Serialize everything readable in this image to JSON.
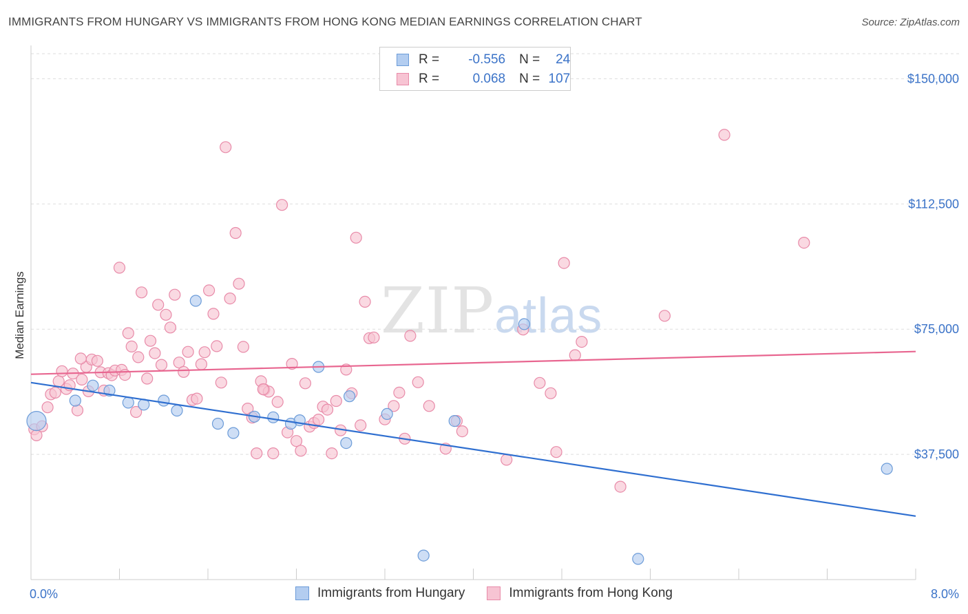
{
  "title": "IMMIGRANTS FROM HUNGARY VS IMMIGRANTS FROM HONG KONG MEDIAN EARNINGS CORRELATION CHART",
  "source": "Source: ZipAtlas.com",
  "watermark": {
    "zip": "ZIP",
    "atlas": "atlas"
  },
  "legend": {
    "r_label": "R =",
    "n_label": "N =",
    "rows": [
      {
        "r": "-0.556",
        "n": "24",
        "swatch_fill": "#b3cdf0",
        "swatch_border": "#6b9bd8"
      },
      {
        "r": "0.068",
        "n": "107",
        "swatch_fill": "#f7c4d3",
        "swatch_border": "#e88aa8"
      }
    ]
  },
  "bottom_legend": [
    {
      "label": "Immigrants from Hungary",
      "fill": "#b3cdf0",
      "border": "#6b9bd8"
    },
    {
      "label": "Immigrants from Hong Kong",
      "fill": "#f7c4d3",
      "border": "#e88aa8"
    }
  ],
  "chart_data": {
    "type": "scatter",
    "ylabel": "Median Earnings",
    "xlim": [
      0,
      8
    ],
    "ylim": [
      0,
      157500
    ],
    "x_tick_labels": [
      "0.0%",
      "8.0%"
    ],
    "y_ticks": [
      37500,
      75000,
      112500,
      150000
    ],
    "y_tick_labels": [
      "$37,500",
      "$75,000",
      "$112,500",
      "$150,000"
    ],
    "grid": true,
    "series": [
      {
        "name": "Immigrants from Hungary",
        "color": "#6b9bd8",
        "fill": "#b3cdf0",
        "trend": {
          "x": [
            0,
            8
          ],
          "y": [
            59000,
            19000
          ],
          "color": "#2f6fd0"
        },
        "points": [
          [
            0.05,
            47500
          ],
          [
            0.4,
            53600
          ],
          [
            0.56,
            58100
          ],
          [
            0.71,
            56600
          ],
          [
            0.88,
            53000
          ],
          [
            1.02,
            52400
          ],
          [
            1.2,
            53600
          ],
          [
            1.32,
            50600
          ],
          [
            1.49,
            83500
          ],
          [
            1.69,
            46700
          ],
          [
            1.83,
            43900
          ],
          [
            2.02,
            48800
          ],
          [
            2.19,
            48600
          ],
          [
            2.35,
            46700
          ],
          [
            2.43,
            47700
          ],
          [
            2.6,
            63700
          ],
          [
            2.85,
            40900
          ],
          [
            2.88,
            54900
          ],
          [
            3.22,
            49600
          ],
          [
            3.55,
            7200
          ],
          [
            3.83,
            47500
          ],
          [
            4.46,
            76500
          ],
          [
            7.74,
            33200
          ],
          [
            5.49,
            6200
          ]
        ]
      },
      {
        "name": "Immigrants from Hong Kong",
        "color": "#e88aa8",
        "fill": "#f7c4d3",
        "trend": {
          "x": [
            0,
            8
          ],
          "y": [
            61500,
            68300
          ],
          "color": "#e86690"
        },
        "points": [
          [
            0.03,
            45000
          ],
          [
            0.05,
            43200
          ],
          [
            0.1,
            45900
          ],
          [
            0.15,
            51600
          ],
          [
            0.18,
            55500
          ],
          [
            0.22,
            56000
          ],
          [
            0.25,
            59400
          ],
          [
            0.28,
            62400
          ],
          [
            0.32,
            57100
          ],
          [
            0.35,
            58200
          ],
          [
            0.38,
            61700
          ],
          [
            0.42,
            50700
          ],
          [
            0.46,
            59900
          ],
          [
            0.5,
            63700
          ],
          [
            0.52,
            56400
          ],
          [
            0.55,
            65900
          ],
          [
            0.6,
            65500
          ],
          [
            0.63,
            62100
          ],
          [
            0.66,
            56600
          ],
          [
            0.7,
            61800
          ],
          [
            0.73,
            61200
          ],
          [
            0.76,
            62600
          ],
          [
            0.8,
            93400
          ],
          [
            0.82,
            62800
          ],
          [
            0.85,
            61300
          ],
          [
            0.88,
            73800
          ],
          [
            0.91,
            69800
          ],
          [
            0.95,
            50200
          ],
          [
            0.97,
            66600
          ],
          [
            1.0,
            86000
          ],
          [
            1.05,
            60200
          ],
          [
            1.08,
            71500
          ],
          [
            1.12,
            67800
          ],
          [
            1.15,
            82300
          ],
          [
            1.18,
            64300
          ],
          [
            1.22,
            79300
          ],
          [
            1.26,
            75500
          ],
          [
            1.3,
            85300
          ],
          [
            1.34,
            65000
          ],
          [
            1.38,
            62200
          ],
          [
            1.42,
            68200
          ],
          [
            1.46,
            53800
          ],
          [
            1.5,
            54200
          ],
          [
            1.54,
            64500
          ],
          [
            1.57,
            68100
          ],
          [
            1.61,
            86600
          ],
          [
            1.65,
            79600
          ],
          [
            1.68,
            69900
          ],
          [
            1.72,
            59000
          ],
          [
            1.76,
            129500
          ],
          [
            1.8,
            84200
          ],
          [
            1.85,
            103800
          ],
          [
            1.88,
            88600
          ],
          [
            1.92,
            69700
          ],
          [
            1.96,
            51200
          ],
          [
            2.0,
            48500
          ],
          [
            2.04,
            37800
          ],
          [
            2.08,
            59400
          ],
          [
            2.11,
            56900
          ],
          [
            2.15,
            56300
          ],
          [
            2.19,
            37800
          ],
          [
            2.23,
            53200
          ],
          [
            2.27,
            112200
          ],
          [
            2.32,
            44100
          ],
          [
            2.36,
            64600
          ],
          [
            2.4,
            41500
          ],
          [
            2.44,
            38600
          ],
          [
            2.48,
            58800
          ],
          [
            2.52,
            45800
          ],
          [
            2.56,
            46900
          ],
          [
            2.6,
            47900
          ],
          [
            2.64,
            51800
          ],
          [
            2.68,
            50900
          ],
          [
            2.72,
            37800
          ],
          [
            2.76,
            53500
          ],
          [
            2.8,
            44700
          ],
          [
            2.85,
            62900
          ],
          [
            2.9,
            55800
          ],
          [
            2.94,
            102400
          ],
          [
            2.98,
            46200
          ],
          [
            3.02,
            83200
          ],
          [
            3.06,
            72300
          ],
          [
            3.1,
            72500
          ],
          [
            3.2,
            48000
          ],
          [
            3.28,
            52000
          ],
          [
            3.33,
            56000
          ],
          [
            3.38,
            42200
          ],
          [
            3.43,
            73000
          ],
          [
            3.5,
            59100
          ],
          [
            3.6,
            52000
          ],
          [
            3.75,
            39200
          ],
          [
            3.85,
            47500
          ],
          [
            3.9,
            44400
          ],
          [
            4.3,
            35900
          ],
          [
            4.45,
            74900
          ],
          [
            4.6,
            58900
          ],
          [
            4.7,
            55800
          ],
          [
            4.75,
            38200
          ],
          [
            4.82,
            94800
          ],
          [
            4.92,
            67200
          ],
          [
            4.98,
            71200
          ],
          [
            5.33,
            27800
          ],
          [
            5.73,
            79000
          ],
          [
            6.27,
            133200
          ],
          [
            6.99,
            100900
          ],
          [
            0.45,
            66200
          ],
          [
            2.1,
            57000
          ]
        ]
      }
    ]
  }
}
